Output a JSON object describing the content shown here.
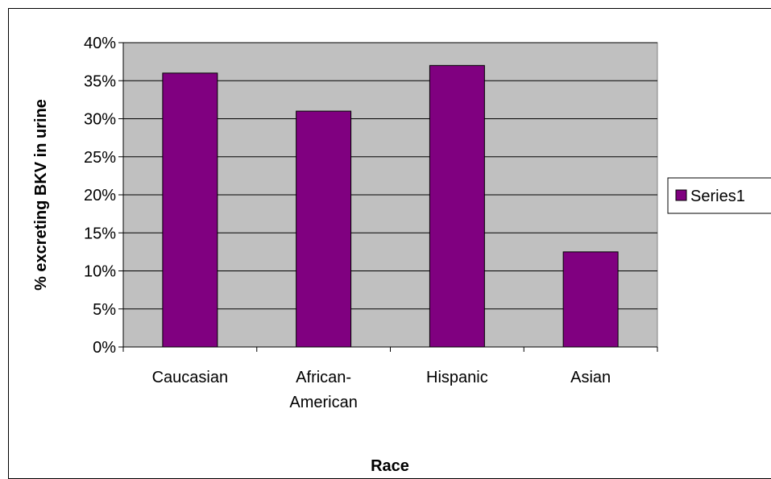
{
  "chart_data": {
    "type": "bar",
    "categories": [
      "Caucasian",
      "African-American",
      "Hispanic",
      "Asian"
    ],
    "category_lines": [
      [
        "Caucasian"
      ],
      [
        "African-",
        "American"
      ],
      [
        "Hispanic"
      ],
      [
        "Asian"
      ]
    ],
    "series": [
      {
        "name": "Series1",
        "values": [
          36,
          31,
          37,
          12.5
        ],
        "color": "#800080"
      }
    ],
    "xlabel": "Race",
    "ylabel": "% excreting BKV in urine",
    "ylim": [
      0,
      40
    ],
    "y_ticks": [
      "0%",
      "5%",
      "10%",
      "15%",
      "20%",
      "25%",
      "30%",
      "35%",
      "40%"
    ],
    "grid": true,
    "plot_background": "#C0C0C0",
    "legend_position": "right"
  }
}
